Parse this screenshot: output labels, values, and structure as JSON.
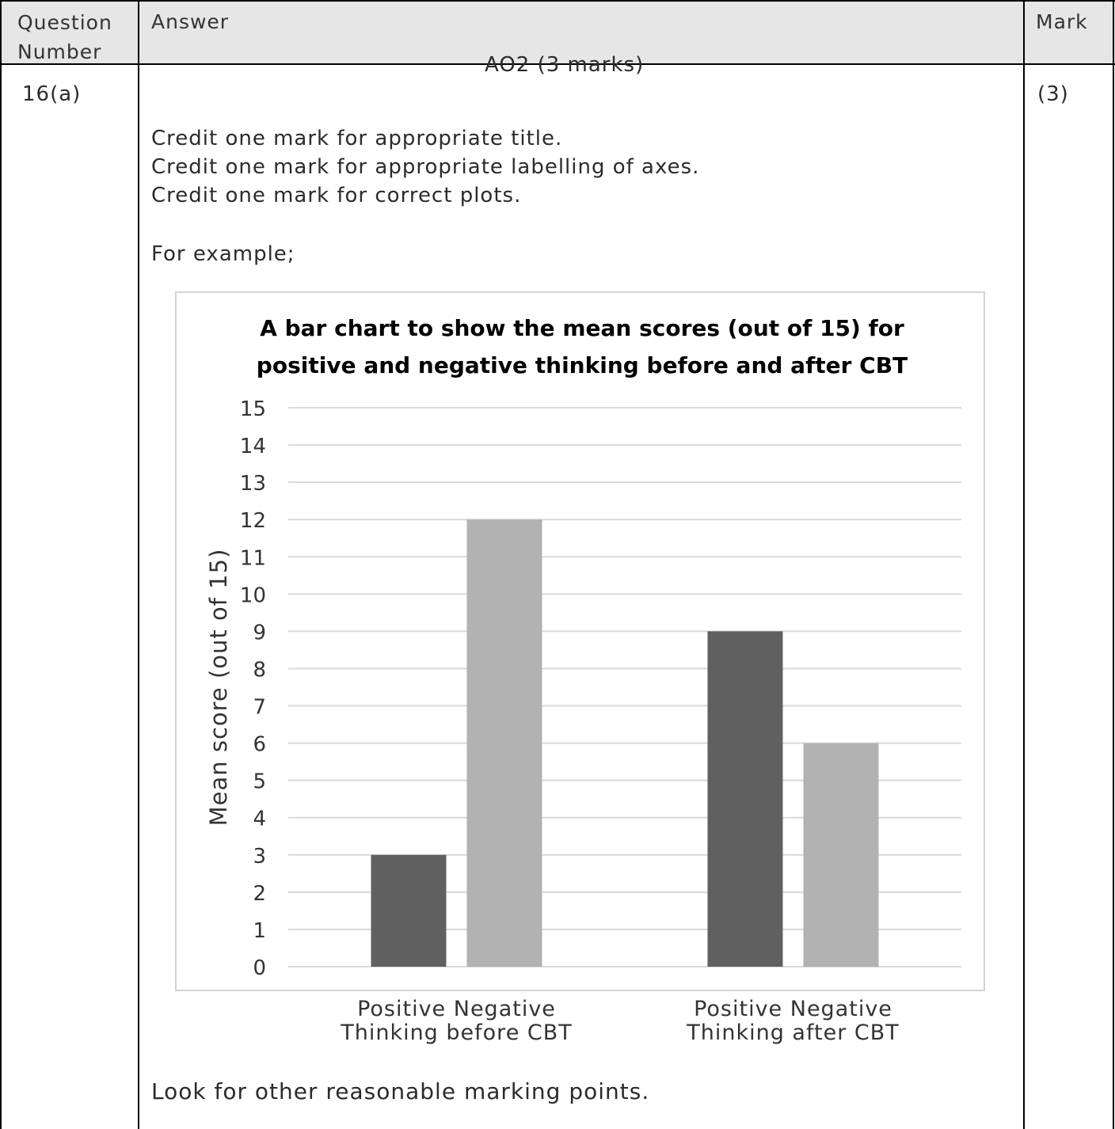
{
  "header": {
    "question_number": "Question\nNumber",
    "answer": "Answer",
    "mark": "Mark"
  },
  "row": {
    "question": "16(a)",
    "ao": "AO2 (3 marks)",
    "mark": "(3)",
    "credits": [
      "Credit one mark for appropriate title.",
      "Credit one mark for appropriate labelling of axes.",
      "Credit one mark for correct plots."
    ],
    "example": "For example;",
    "footer": "Look for other reasonable marking points."
  },
  "chart_data": {
    "type": "bar",
    "title": [
      "A bar chart to show the mean scores (out of 15) for",
      "positive and negative thinking before and after CBT"
    ],
    "ylabel": "Mean score (out of 15)",
    "ylim": [
      0,
      15
    ],
    "yticks": [
      0,
      1,
      2,
      3,
      4,
      5,
      6,
      7,
      8,
      9,
      10,
      11,
      12,
      13,
      14,
      15
    ],
    "grid": true,
    "categories": [
      [
        "Positive Negative",
        "Thinking before CBT"
      ],
      [
        "Positive Negative",
        "Thinking after CBT"
      ]
    ],
    "series": [
      {
        "values": [
          3,
          9
        ],
        "color": "#606060"
      },
      {
        "values": [
          12,
          6
        ],
        "color": "#b2b2b2"
      }
    ]
  }
}
